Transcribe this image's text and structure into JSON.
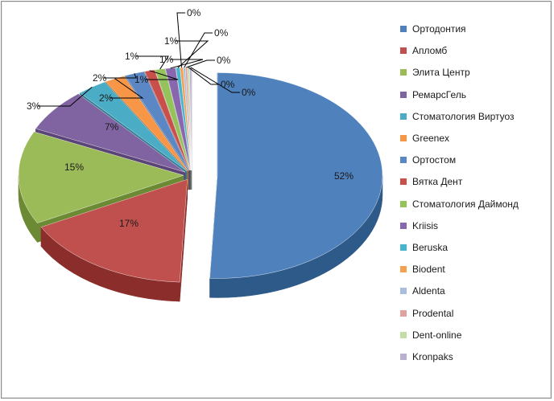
{
  "chart_data": {
    "type": "pie",
    "title": "",
    "three_d": true,
    "exploded": true,
    "legend_position": "right",
    "slices": [
      {
        "name": "Ортодонтия",
        "value": 52,
        "label": "52%",
        "color": "#4F81BD",
        "side": "#2E5A8A"
      },
      {
        "name": "Апломб",
        "value": 17,
        "label": "17%",
        "color": "#C0504D",
        "side": "#8B2E2B"
      },
      {
        "name": "Элита Центр",
        "value": 15,
        "label": "15%",
        "color": "#9BBB59",
        "side": "#6B8A33"
      },
      {
        "name": "РемарсГель",
        "value": 7,
        "label": "7%",
        "color": "#8064A2",
        "side": "#5A4478"
      },
      {
        "name": "Стоматология Виртуоз",
        "value": 3,
        "label": "3%",
        "color": "#4BACC6",
        "side": "#2F7F94"
      },
      {
        "name": "Greenex",
        "value": 2,
        "label": "2%",
        "color": "#F79646",
        "side": "#B86A27"
      },
      {
        "name": "Ортостом",
        "value": 2,
        "label": "2%",
        "color": "#5B87C5",
        "side": "#3B6096"
      },
      {
        "name": "Вятка Дент",
        "value": 1,
        "label": "1%",
        "color": "#C9504A",
        "side": "#913330"
      },
      {
        "name": "Стоматология Даймонд",
        "value": 1,
        "label": "1%",
        "color": "#93C35A",
        "side": "#689038"
      },
      {
        "name": "Kriisis",
        "value": 1,
        "label": "1%",
        "color": "#8867AE",
        "side": "#5F4780"
      },
      {
        "name": "Beruska",
        "value": 0.4,
        "label": "1%",
        "color": "#46B5CF",
        "side": "#2C8298"
      },
      {
        "name": "Biodent",
        "value": 0.3,
        "label": "0%",
        "color": "#F4A24F",
        "side": "#B87130"
      },
      {
        "name": "Aldenta",
        "value": 0.2,
        "label": "0%",
        "color": "#A9BEDD",
        "side": "#7890B5"
      },
      {
        "name": "Prodental",
        "value": 0.2,
        "label": "0%",
        "color": "#DEA3A1",
        "side": "#A97573"
      },
      {
        "name": "Dent-online",
        "value": 0.2,
        "label": "0%",
        "color": "#C4DCA7",
        "side": "#93AD76"
      },
      {
        "name": "Kronpaks",
        "value": 0.2,
        "label": "0%",
        "color": "#BBB0CF",
        "side": "#8B80A0"
      }
    ]
  }
}
